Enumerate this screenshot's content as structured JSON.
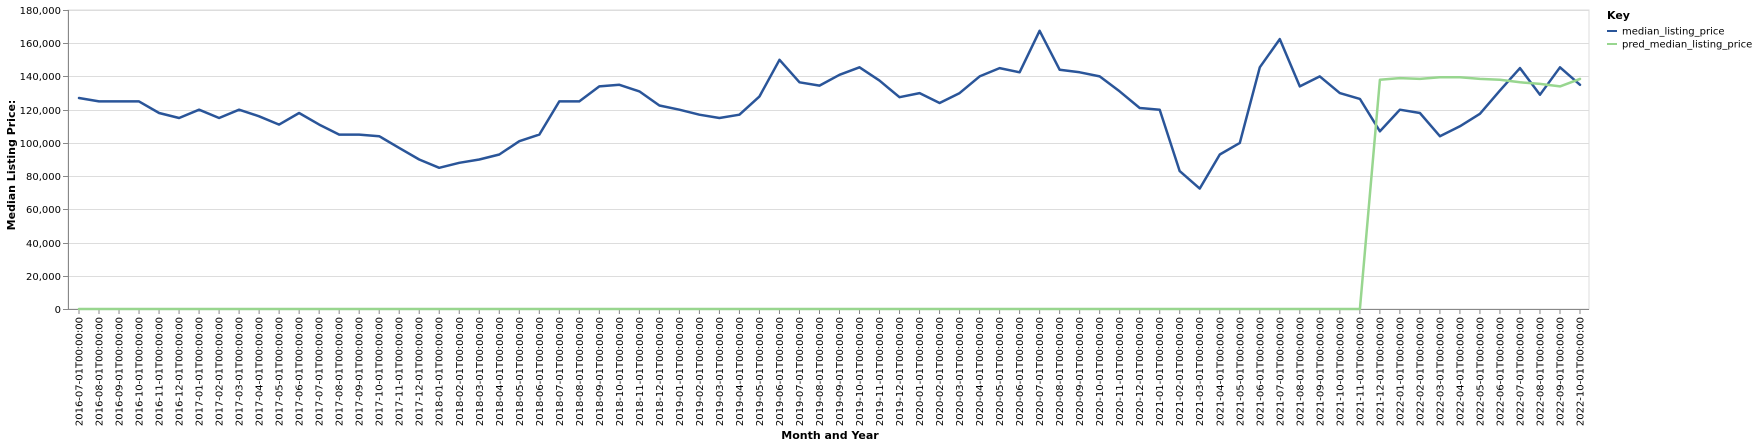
{
  "chart_data": {
    "type": "line",
    "xlabel": "Month and Year",
    "ylabel": "Median Listing Price:",
    "ylim": [
      0,
      180000
    ],
    "yticks": [
      "0",
      "20,000",
      "40,000",
      "60,000",
      "80,000",
      "100,000",
      "120,000",
      "140,000",
      "160,000",
      "180,000"
    ],
    "grid": true,
    "legend": {
      "title": "Key",
      "placement": "top-right"
    },
    "x": [
      "2016-07-01T00:00:00",
      "2016-08-01T00:00:00",
      "2016-09-01T00:00:00",
      "2016-10-01T00:00:00",
      "2016-11-01T00:00:00",
      "2016-12-01T00:00:00",
      "2017-01-01T00:00:00",
      "2017-02-01T00:00:00",
      "2017-03-01T00:00:00",
      "2017-04-01T00:00:00",
      "2017-05-01T00:00:00",
      "2017-06-01T00:00:00",
      "2017-07-01T00:00:00",
      "2017-08-01T00:00:00",
      "2017-09-01T00:00:00",
      "2017-10-01T00:00:00",
      "2017-11-01T00:00:00",
      "2017-12-01T00:00:00",
      "2018-01-01T00:00:00",
      "2018-02-01T00:00:00",
      "2018-03-01T00:00:00",
      "2018-04-01T00:00:00",
      "2018-05-01T00:00:00",
      "2018-06-01T00:00:00",
      "2018-07-01T00:00:00",
      "2018-08-01T00:00:00",
      "2018-09-01T00:00:00",
      "2018-10-01T00:00:00",
      "2018-11-01T00:00:00",
      "2018-12-01T00:00:00",
      "2019-01-01T00:00:00",
      "2019-02-01T00:00:00",
      "2019-03-01T00:00:00",
      "2019-04-01T00:00:00",
      "2019-05-01T00:00:00",
      "2019-06-01T00:00:00",
      "2019-07-01T00:00:00",
      "2019-08-01T00:00:00",
      "2019-09-01T00:00:00",
      "2019-10-01T00:00:00",
      "2019-11-01T00:00:00",
      "2019-12-01T00:00:00",
      "2020-01-01T00:00:00",
      "2020-02-01T00:00:00",
      "2020-03-01T00:00:00",
      "2020-04-01T00:00:00",
      "2020-05-01T00:00:00",
      "2020-06-01T00:00:00",
      "2020-07-01T00:00:00",
      "2020-08-01T00:00:00",
      "2020-09-01T00:00:00",
      "2020-10-01T00:00:00",
      "2020-11-01T00:00:00",
      "2020-12-01T00:00:00",
      "2021-01-01T00:00:00",
      "2021-02-01T00:00:00",
      "2021-03-01T00:00:00",
      "2021-04-01T00:00:00",
      "2021-05-01T00:00:00",
      "2021-06-01T00:00:00",
      "2021-07-01T00:00:00",
      "2021-08-01T00:00:00",
      "2021-09-01T00:00:00",
      "2021-10-01T00:00:00",
      "2021-11-01T00:00:00",
      "2021-12-01T00:00:00",
      "2022-01-01T00:00:00",
      "2022-02-01T00:00:00",
      "2022-03-01T00:00:00",
      "2022-04-01T00:00:00",
      "2022-05-01T00:00:00",
      "2022-06-01T00:00:00",
      "2022-07-01T00:00:00",
      "2022-08-01T00:00:00",
      "2022-09-01T00:00:00",
      "2022-10-01T00:00:00"
    ],
    "series": [
      {
        "name": "median_listing_price",
        "color": "#2a5599",
        "values": [
          127000,
          125000,
          125000,
          125000,
          118000,
          115000,
          120000,
          115000,
          120000,
          116000,
          111000,
          118000,
          111000,
          105000,
          105000,
          104000,
          97000,
          90000,
          85000,
          88000,
          90000,
          93000,
          101000,
          105000,
          125000,
          125000,
          134000,
          135000,
          131000,
          122500,
          120000,
          117000,
          115000,
          117000,
          128000,
          150000,
          136500,
          134500,
          141000,
          145500,
          137500,
          127500,
          130000,
          124000,
          130000,
          140000,
          145000,
          142500,
          167500,
          144000,
          142500,
          140000,
          131000,
          121000,
          120000,
          83000,
          72500,
          93000,
          100000,
          145500,
          162500,
          134000,
          140000,
          130000,
          126500,
          107000,
          120000,
          118000,
          104000,
          110000,
          117500,
          131500,
          145000,
          129000,
          145500,
          135000
        ]
      },
      {
        "name": "pred_median_listing_price",
        "color": "#98d68f",
        "values": [
          0,
          0,
          0,
          0,
          0,
          0,
          0,
          0,
          0,
          0,
          0,
          0,
          0,
          0,
          0,
          0,
          0,
          0,
          0,
          0,
          0,
          0,
          0,
          0,
          0,
          0,
          0,
          0,
          0,
          0,
          0,
          0,
          0,
          0,
          0,
          0,
          0,
          0,
          0,
          0,
          0,
          0,
          0,
          0,
          0,
          0,
          0,
          0,
          0,
          0,
          0,
          0,
          0,
          0,
          0,
          0,
          0,
          0,
          0,
          0,
          0,
          0,
          0,
          0,
          0,
          138000,
          139000,
          138500,
          139500,
          139500,
          138500,
          138000,
          136500,
          135500,
          134000,
          138500
        ]
      }
    ]
  }
}
